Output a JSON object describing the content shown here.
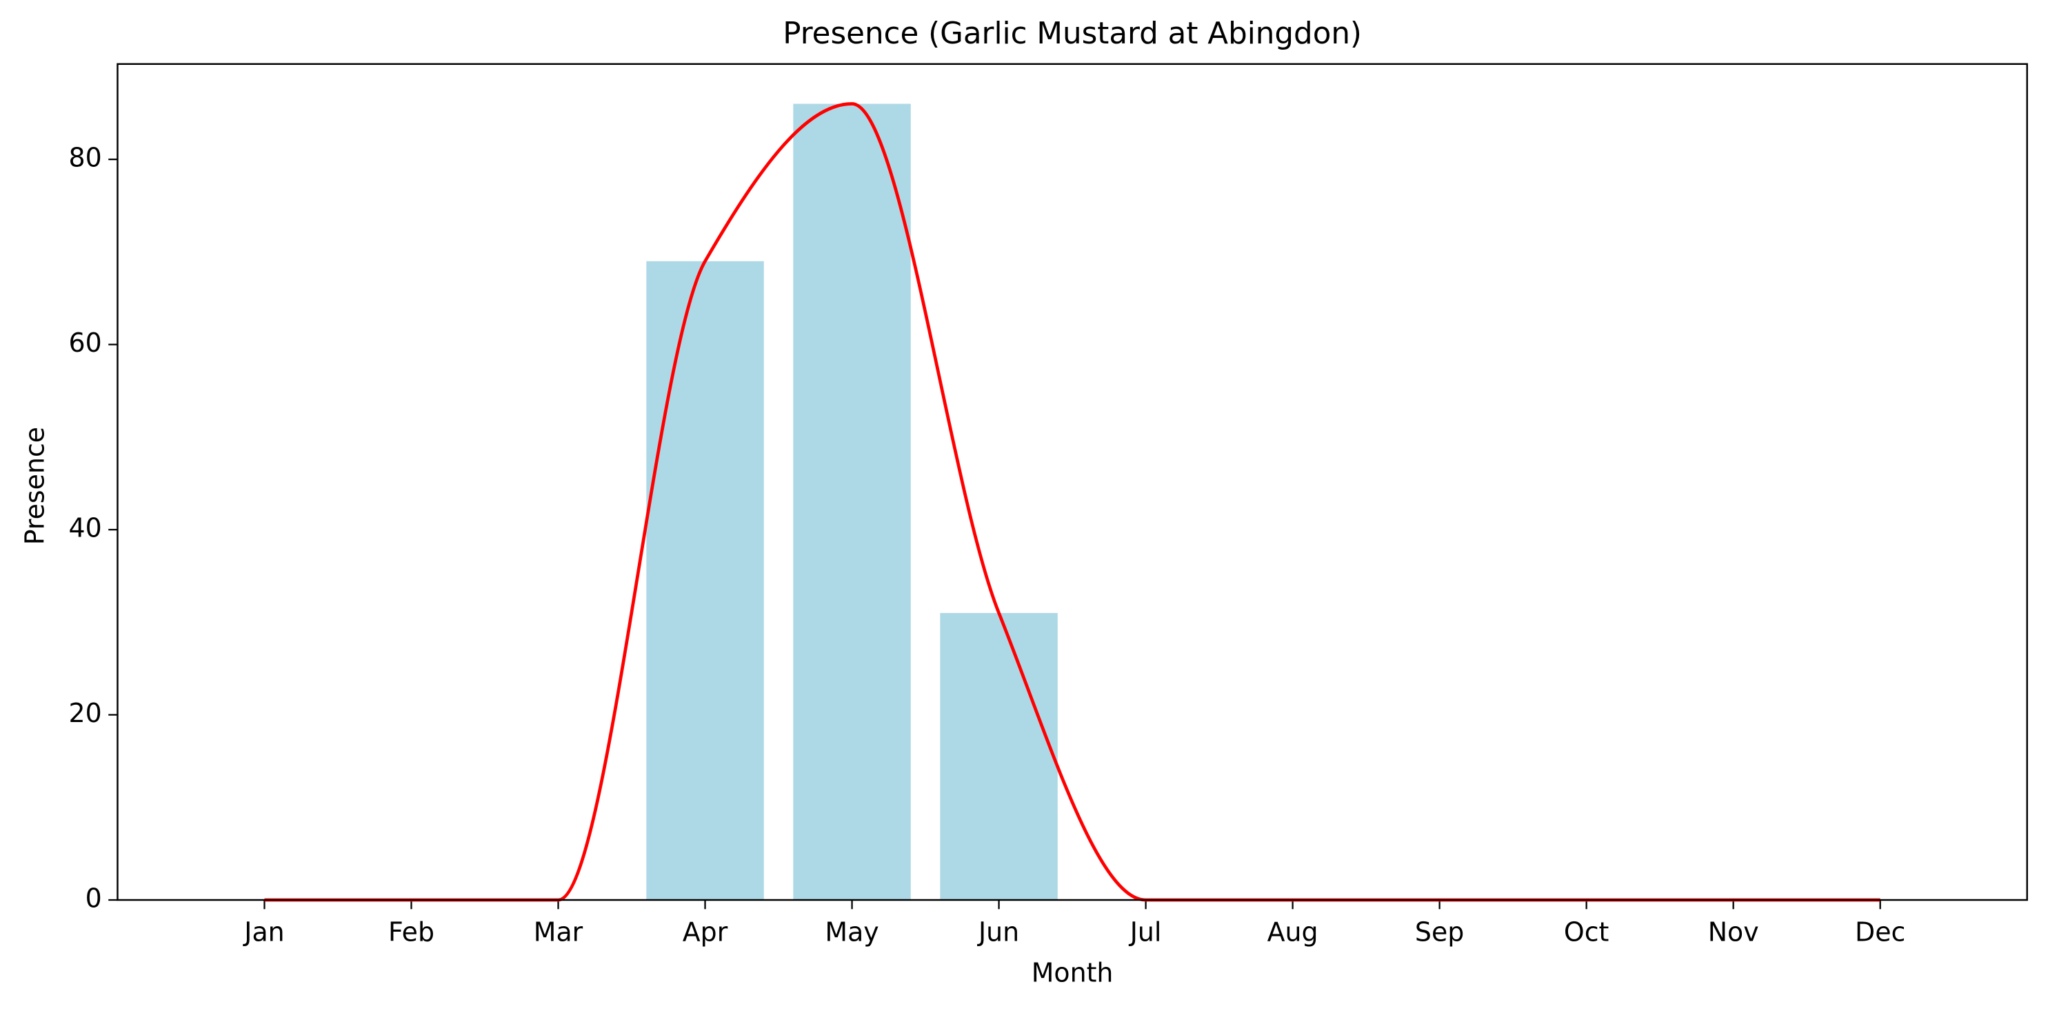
{
  "chart_data": {
    "type": "bar",
    "title": "Presence (Garlic Mustard at Abingdon)",
    "x_label": "Month",
    "y_label": "Presence",
    "categories": [
      "Jan",
      "Feb",
      "Mar",
      "Apr",
      "May",
      "Jun",
      "Jul",
      "Aug",
      "Sep",
      "Oct",
      "Nov",
      "Dec"
    ],
    "values": [
      0,
      0,
      0,
      69,
      86,
      31,
      0,
      0,
      0,
      0,
      0,
      0
    ],
    "color": "#add8e6",
    "smooth_line": true,
    "line_color": "#ff0000",
    "ylim": [
      0,
      90.3
    ],
    "yticks": [
      0,
      20,
      40,
      60,
      80
    ],
    "grid": false
  }
}
